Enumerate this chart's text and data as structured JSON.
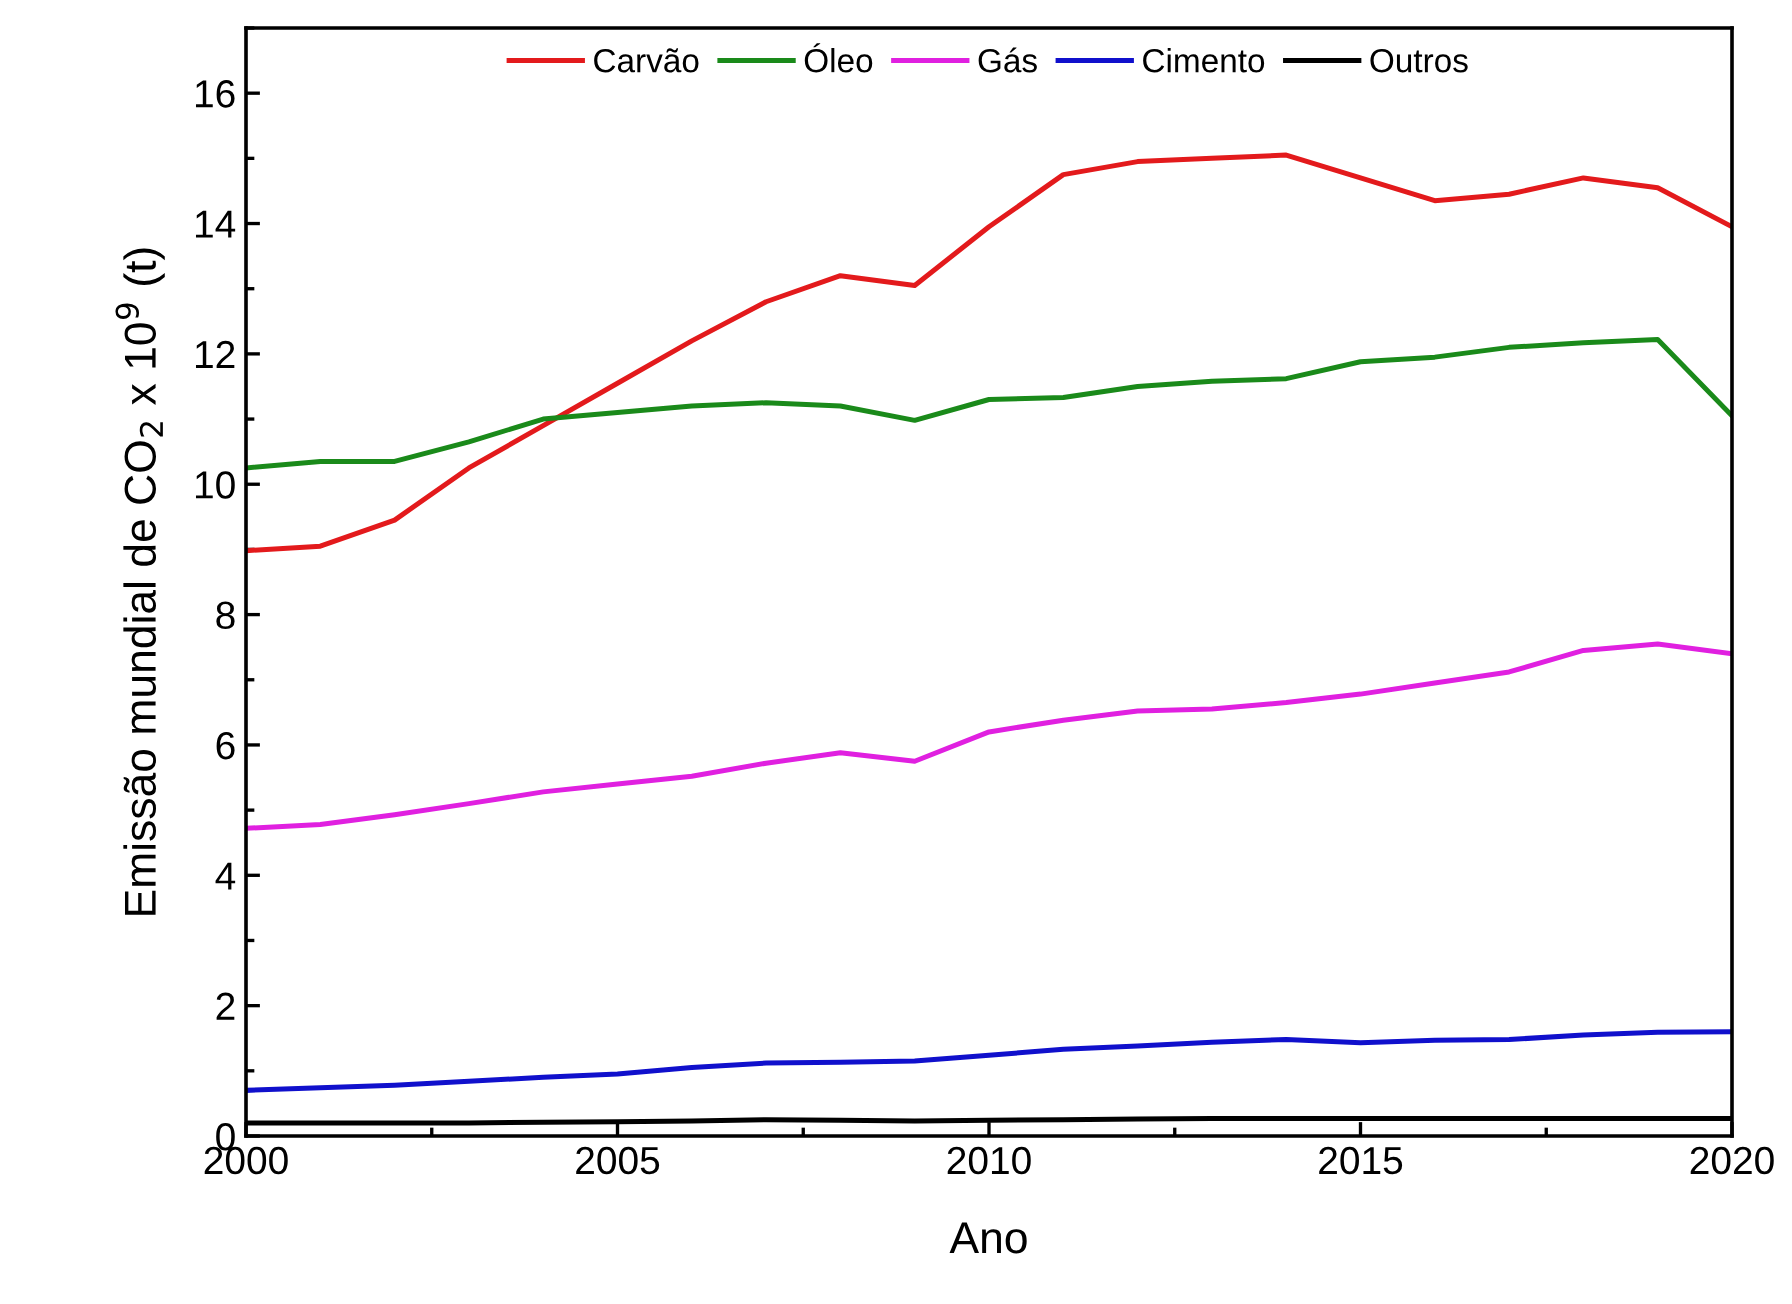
{
  "chart_data": {
    "type": "line",
    "xlabel": "Ano",
    "ylabel": "Emissão mundial de CO$_{2}$ x 10$^{9}$ (t)",
    "x": [
      2000,
      2001,
      2002,
      2003,
      2004,
      2005,
      2006,
      2007,
      2008,
      2009,
      2010,
      2011,
      2012,
      2013,
      2014,
      2015,
      2016,
      2017,
      2018,
      2019,
      2020
    ],
    "series": [
      {
        "name": "Carvão",
        "color": "#e31a1c",
        "values": [
          8.98,
          9.05,
          9.45,
          10.25,
          10.9,
          11.55,
          12.2,
          12.8,
          13.2,
          13.05,
          13.95,
          14.75,
          14.95,
          15.0,
          15.05,
          14.7,
          14.35,
          14.45,
          14.7,
          14.55,
          13.95
        ]
      },
      {
        "name": "Óleo",
        "color": "#1a8a1a",
        "values": [
          10.25,
          10.35,
          10.35,
          10.65,
          11.0,
          11.1,
          11.2,
          11.25,
          11.2,
          10.98,
          11.3,
          11.33,
          11.5,
          11.58,
          11.62,
          11.88,
          11.95,
          12.1,
          12.17,
          12.22,
          11.05
        ]
      },
      {
        "name": "Gás",
        "color": "#e020e0",
        "values": [
          4.72,
          4.78,
          4.93,
          5.1,
          5.28,
          5.4,
          5.52,
          5.72,
          5.88,
          5.75,
          6.2,
          6.38,
          6.52,
          6.55,
          6.65,
          6.78,
          6.95,
          7.12,
          7.45,
          7.55,
          7.4
        ]
      },
      {
        "name": "Cimento",
        "color": "#1010cc",
        "values": [
          0.7,
          0.74,
          0.78,
          0.84,
          0.9,
          0.95,
          1.05,
          1.12,
          1.13,
          1.15,
          1.24,
          1.33,
          1.38,
          1.44,
          1.48,
          1.43,
          1.47,
          1.48,
          1.55,
          1.59,
          1.6
        ]
      },
      {
        "name": "Outros",
        "color": "#000000",
        "values": [
          0.2,
          0.2,
          0.2,
          0.2,
          0.21,
          0.22,
          0.23,
          0.25,
          0.24,
          0.23,
          0.24,
          0.25,
          0.26,
          0.27,
          0.27,
          0.27,
          0.27,
          0.27,
          0.27,
          0.27,
          0.27
        ]
      }
    ],
    "xlim": [
      2000,
      2020
    ],
    "xticks": [
      2000,
      2005,
      2010,
      2015,
      2020
    ],
    "ylim": [
      0,
      17
    ],
    "yticks": [
      0,
      2,
      4,
      6,
      8,
      10,
      12,
      14,
      16
    ],
    "legend": "top",
    "grid": false,
    "marker": "none",
    "line_style": "solid"
  }
}
